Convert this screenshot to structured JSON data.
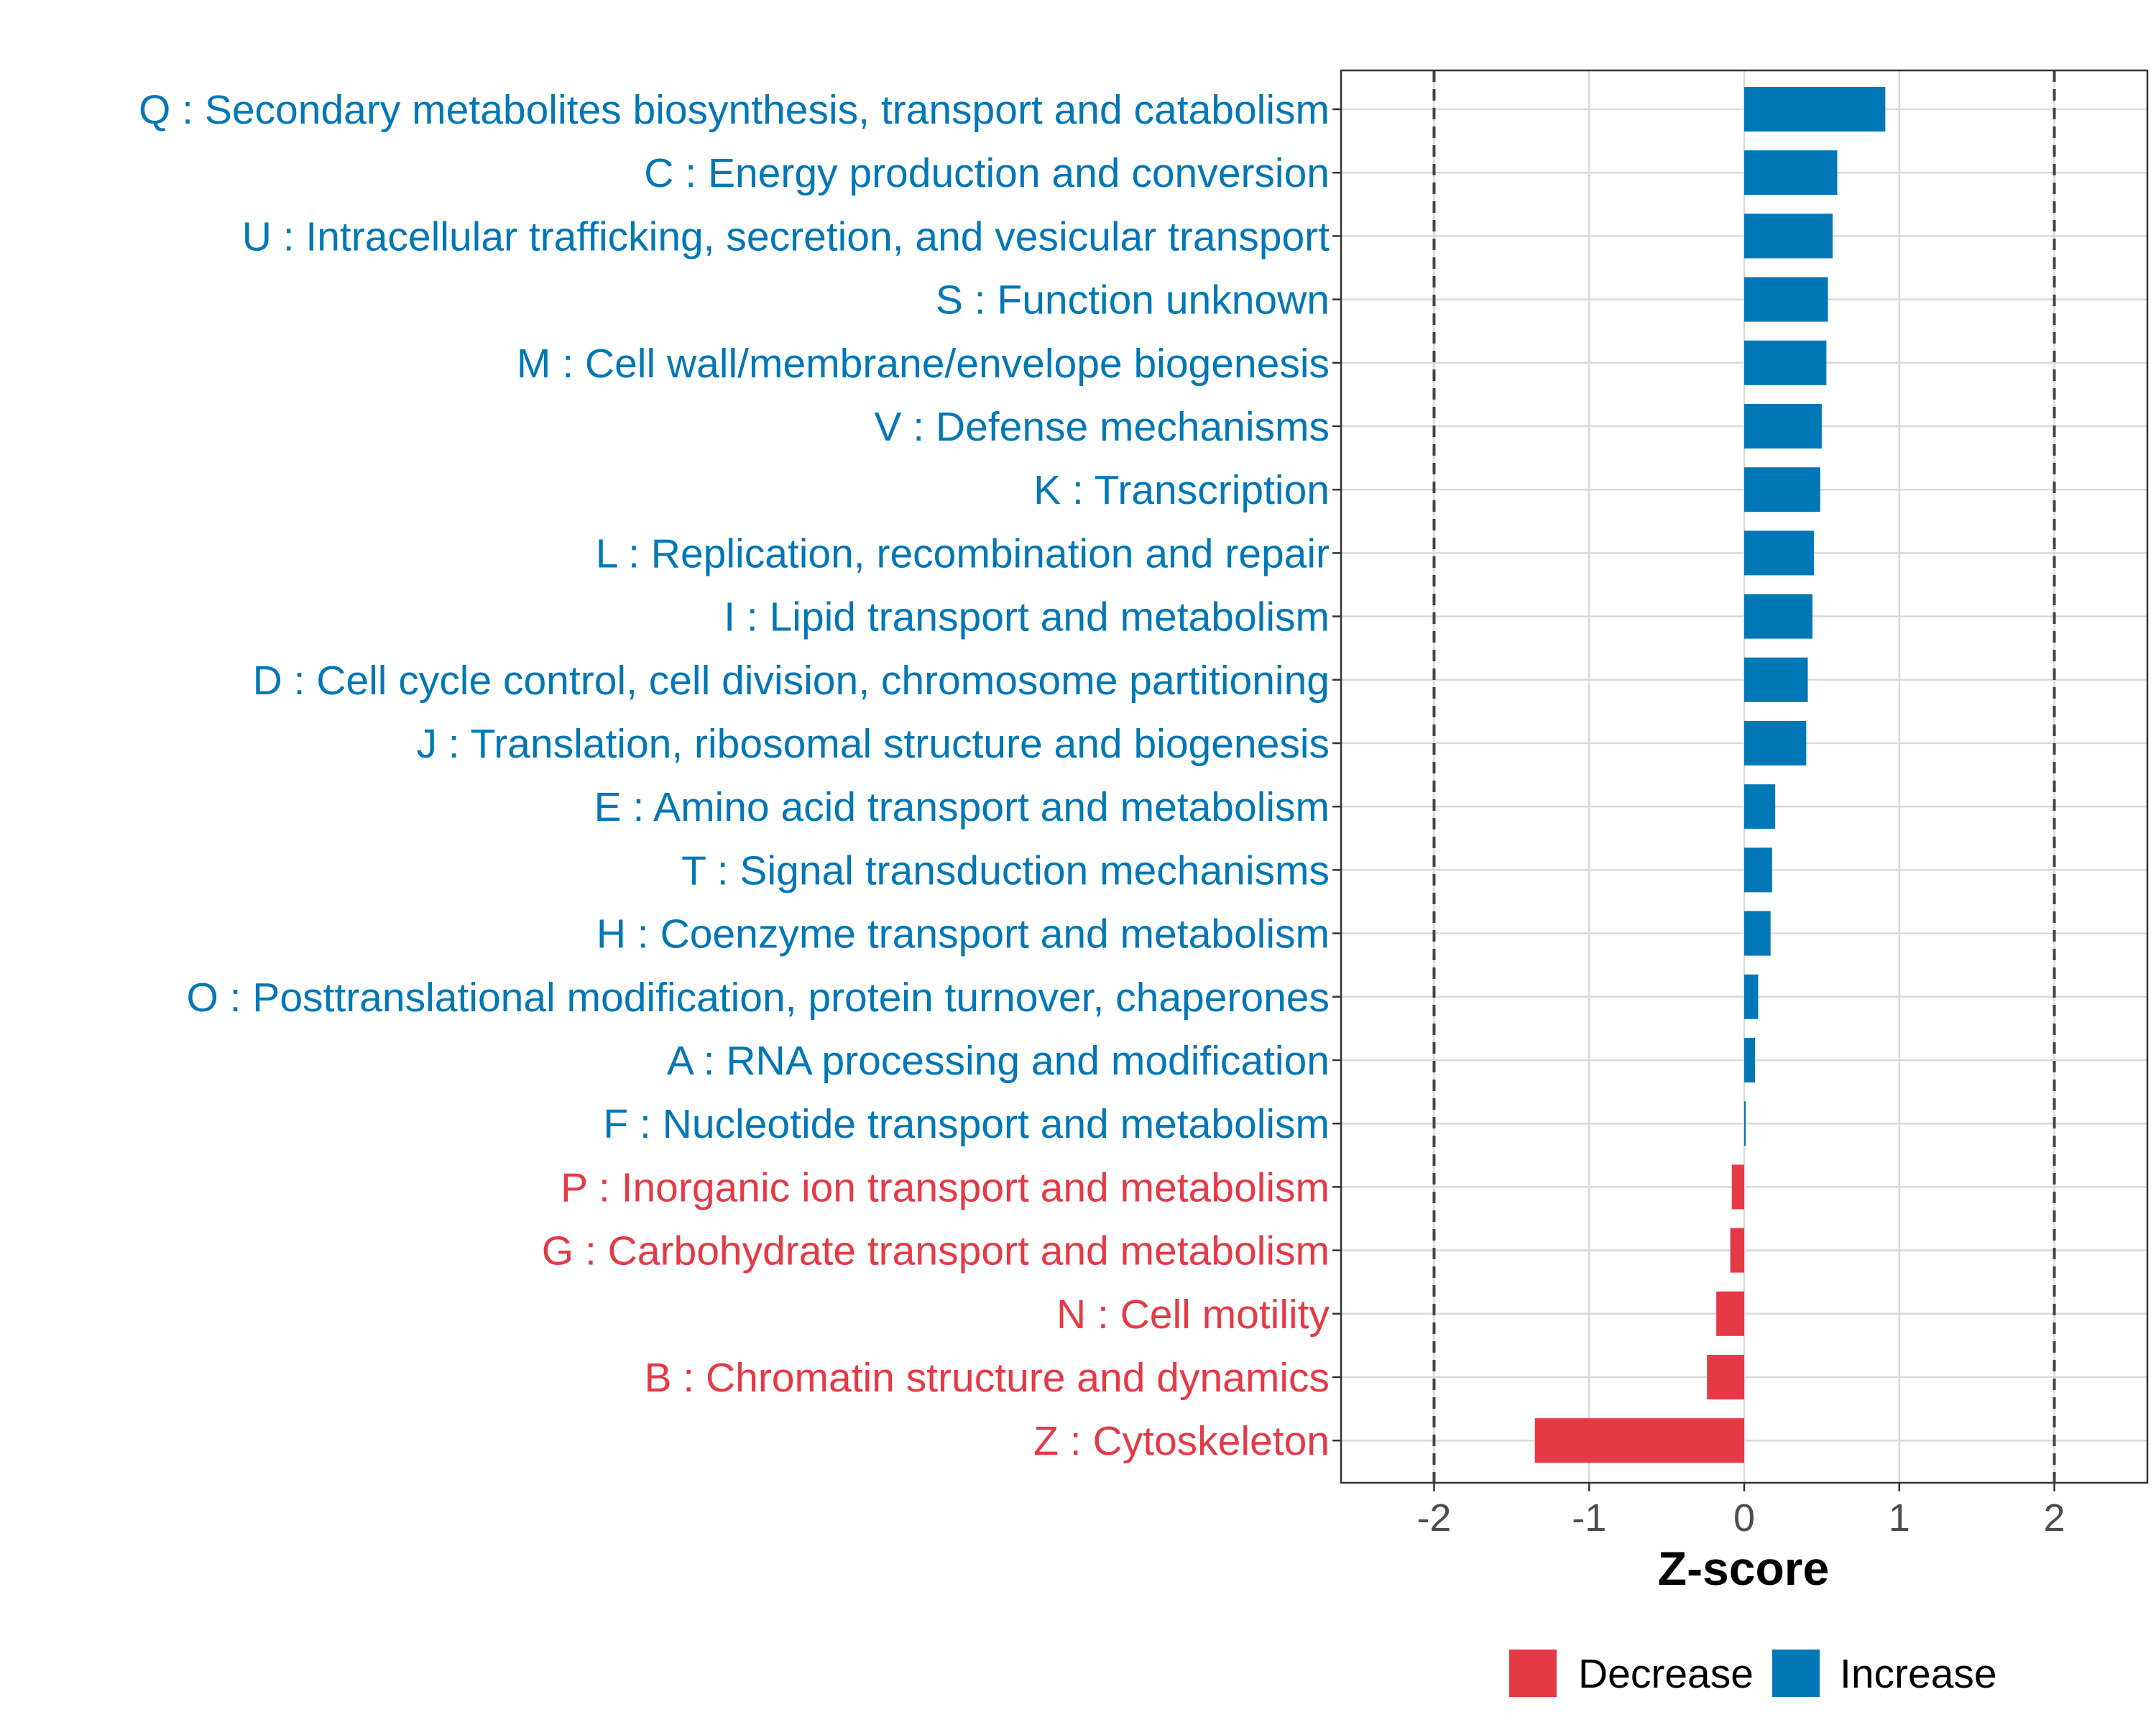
{
  "chart_data": {
    "type": "bar",
    "orientation": "horizontal",
    "xlabel": "Z-score",
    "xlim": [
      -2.6,
      2.6
    ],
    "x_ticks": [
      -2,
      -1,
      0,
      1,
      2
    ],
    "x_tick_labels": [
      "-2",
      "-1",
      "0",
      "1",
      "2"
    ],
    "reference_lines": [
      -2,
      2
    ],
    "grid": true,
    "legend_position": "bottom",
    "categories": [
      "Q : Secondary metabolites biosynthesis, transport and catabolism",
      "C : Energy production and conversion",
      "U : Intracellular trafficking, secretion, and vesicular transport",
      "S : Function unknown",
      "M : Cell wall/membrane/envelope biogenesis",
      "V : Defense mechanisms",
      "K : Transcription",
      "L : Replication, recombination and repair",
      "I : Lipid transport and metabolism",
      "D : Cell cycle control, cell division, chromosome partitioning",
      "J : Translation, ribosomal structure and biogenesis",
      "E : Amino acid transport and metabolism",
      "T : Signal transduction mechanisms",
      "H : Coenzyme transport and metabolism",
      "O : Posttranslational modification, protein turnover, chaperones",
      "A : RNA processing and modification",
      "F : Nucleotide transport and metabolism",
      "P : Inorganic ion transport and metabolism",
      "G : Carbohydrate transport and metabolism",
      "N : Cell motility",
      "B : Chromatin structure and dynamics",
      "Z : Cytoskeleton"
    ],
    "values": [
      0.91,
      0.6,
      0.57,
      0.54,
      0.53,
      0.5,
      0.49,
      0.45,
      0.44,
      0.41,
      0.4,
      0.2,
      0.18,
      0.17,
      0.09,
      0.07,
      0.01,
      -0.08,
      -0.09,
      -0.18,
      -0.24,
      -1.35
    ],
    "legend": [
      {
        "label": "Decrease",
        "color": "#e63946"
      },
      {
        "label": "Increase",
        "color": "#0077b6"
      }
    ]
  }
}
